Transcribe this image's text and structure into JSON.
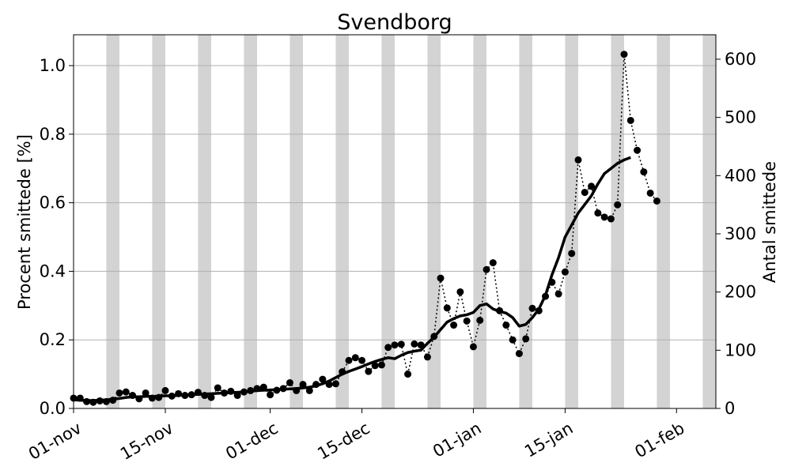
{
  "chart_data": {
    "type": "line",
    "title": "Svendborg",
    "ylabel_left": "Procent smittede [%]",
    "ylabel_right": "Antal smittede",
    "x_tick_labels": [
      "01-nov",
      "15-nov",
      "01-dec",
      "15-dec",
      "01-jan",
      "15-jan",
      "01-feb"
    ],
    "x_start": "2021-11-01",
    "x_end": "2022-02-07",
    "ylim_left": [
      0.0,
      1.09
    ],
    "ylim_right": [
      0,
      642
    ],
    "yticks_left": [
      "0.0",
      "0.2",
      "0.4",
      "0.6",
      "0.8",
      "1.0"
    ],
    "yticks_right": [
      "0",
      "100",
      "200",
      "300",
      "400",
      "500",
      "600"
    ],
    "grid": "horizontal",
    "weekend_bands": [
      [
        "2021-11-06",
        "2021-11-07"
      ],
      [
        "2021-11-13",
        "2021-11-14"
      ],
      [
        "2021-11-20",
        "2021-11-21"
      ],
      [
        "2021-11-27",
        "2021-11-28"
      ],
      [
        "2021-12-04",
        "2021-12-05"
      ],
      [
        "2021-12-11",
        "2021-12-12"
      ],
      [
        "2021-12-18",
        "2021-12-19"
      ],
      [
        "2021-12-25",
        "2021-12-26"
      ],
      [
        "2022-01-01",
        "2022-01-02"
      ],
      [
        "2022-01-08",
        "2022-01-09"
      ],
      [
        "2022-01-15",
        "2022-01-16"
      ],
      [
        "2022-01-22",
        "2022-01-23"
      ],
      [
        "2022-01-29",
        "2022-01-30"
      ],
      [
        "2022-02-05",
        "2022-02-06"
      ]
    ],
    "daily_start_date": "2021-11-01",
    "daily_percent": [
      0.03,
      0.03,
      0.02,
      0.018,
      0.022,
      0.02,
      0.024,
      0.045,
      0.048,
      0.038,
      0.028,
      0.045,
      0.03,
      0.032,
      0.052,
      0.036,
      0.043,
      0.038,
      0.04,
      0.047,
      0.038,
      0.032,
      0.06,
      0.045,
      0.05,
      0.038,
      0.048,
      0.052,
      0.058,
      0.062,
      0.04,
      0.053,
      0.058,
      0.075,
      0.052,
      0.07,
      0.052,
      0.07,
      0.085,
      0.07,
      0.072,
      0.107,
      0.14,
      0.148,
      0.14,
      0.108,
      0.125,
      0.127,
      0.178,
      0.185,
      0.187,
      0.1,
      0.188,
      0.185,
      0.15,
      0.21,
      0.38,
      0.293,
      0.243,
      0.34,
      0.255,
      0.18,
      0.257,
      0.405,
      0.425,
      0.285,
      0.243,
      0.2,
      0.16,
      0.203,
      0.292,
      0.285,
      0.327,
      0.368,
      0.334,
      0.398,
      0.452,
      0.725,
      0.63,
      0.648,
      0.57,
      0.558,
      0.553,
      0.594,
      1.033,
      0.84,
      0.753,
      0.69,
      0.628,
      0.605
    ],
    "rolling_start_date": "2021-11-01",
    "rolling_percent": [
      0.025,
      0.024,
      0.023,
      0.023,
      0.024,
      0.025,
      0.027,
      0.029,
      0.032,
      0.034,
      0.034,
      0.035,
      0.035,
      0.036,
      0.037,
      0.037,
      0.038,
      0.039,
      0.04,
      0.041,
      0.042,
      0.043,
      0.044,
      0.045,
      0.046,
      0.047,
      0.048,
      0.05,
      0.052,
      0.053,
      0.054,
      0.055,
      0.056,
      0.057,
      0.058,
      0.06,
      0.062,
      0.066,
      0.072,
      0.08,
      0.09,
      0.1,
      0.108,
      0.115,
      0.122,
      0.13,
      0.137,
      0.143,
      0.148,
      0.145,
      0.155,
      0.163,
      0.167,
      0.17,
      0.19,
      0.208,
      0.23,
      0.252,
      0.262,
      0.27,
      0.273,
      0.28,
      0.3,
      0.305,
      0.29,
      0.283,
      0.278,
      0.265,
      0.24,
      0.245,
      0.265,
      0.29,
      0.33,
      0.39,
      0.44,
      0.5,
      0.535,
      0.57,
      0.595,
      0.62,
      0.655,
      0.685,
      0.7,
      0.715,
      0.725,
      0.732
    ],
    "series": [
      {
        "name": "",
        "kind": "daily",
        "color": "#000000"
      },
      {
        "name": "",
        "kind": "rolling_average",
        "color": "#000000"
      }
    ]
  }
}
